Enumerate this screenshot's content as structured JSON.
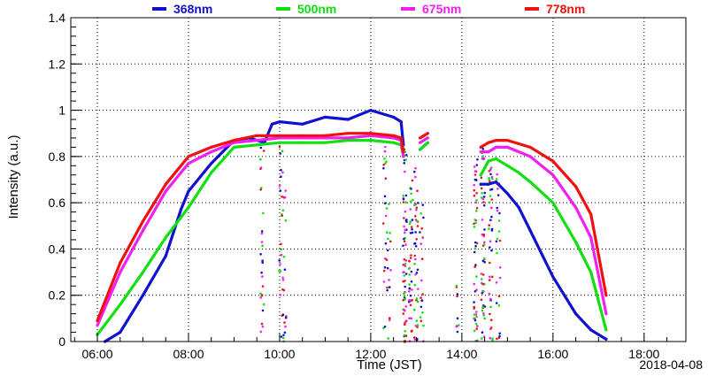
{
  "chart_data": {
    "type": "scatter",
    "xlabel": "Time (JST)",
    "ylabel": "Intensity (a.u.)",
    "date_label": "2018-04-08",
    "xlim": [
      "05:25",
      "18:55"
    ],
    "ylim": [
      0,
      1.4
    ],
    "x_ticks": [
      "06:00",
      "08:00",
      "10:00",
      "12:00",
      "14:00",
      "16:00",
      "18:00"
    ],
    "y_ticks": [
      "0",
      "0.2",
      "0.4",
      "0.6",
      "0.8",
      "1",
      "1.2",
      "1.4"
    ],
    "grid": true,
    "legend_position": "top",
    "series": [
      {
        "name": "368nm",
        "color": "#1010d0",
        "x": [
          "06:10",
          "06:30",
          "07:00",
          "07:30",
          "07:50",
          "08:00",
          "08:30",
          "09:00",
          "09:20",
          "09:40",
          "09:50",
          "10:00",
          "10:30",
          "11:00",
          "11:30",
          "12:00",
          "12:30",
          "12:40",
          "12:43",
          "12:45",
          "13:05",
          "13:15",
          "14:25",
          "14:35",
          "14:45",
          "15:00",
          "15:15",
          "15:30",
          "16:00",
          "16:30",
          "16:50",
          "17:10"
        ],
        "y": [
          0.0,
          0.04,
          0.2,
          0.37,
          0.57,
          0.65,
          0.77,
          0.87,
          0.88,
          0.86,
          0.94,
          0.95,
          0.94,
          0.97,
          0.96,
          1.0,
          0.97,
          0.95,
          0.85,
          0.0,
          0.83,
          0.86,
          0.68,
          0.68,
          0.69,
          0.64,
          0.58,
          0.48,
          0.28,
          0.12,
          0.05,
          0.01
        ]
      },
      {
        "name": "500nm",
        "color": "#10e010",
        "x": [
          "06:00",
          "06:30",
          "07:00",
          "07:30",
          "08:00",
          "08:30",
          "09:00",
          "09:30",
          "10:00",
          "10:30",
          "11:00",
          "11:30",
          "12:00",
          "12:30",
          "12:40",
          "12:43",
          "12:45",
          "13:05",
          "13:15",
          "14:25",
          "14:35",
          "14:45",
          "15:00",
          "15:15",
          "15:30",
          "16:00",
          "16:30",
          "16:50",
          "17:10"
        ],
        "y": [
          0.03,
          0.16,
          0.3,
          0.45,
          0.58,
          0.73,
          0.84,
          0.85,
          0.86,
          0.86,
          0.86,
          0.87,
          0.87,
          0.86,
          0.85,
          0.8,
          0.0,
          0.83,
          0.86,
          0.72,
          0.78,
          0.79,
          0.76,
          0.73,
          0.69,
          0.6,
          0.43,
          0.3,
          0.05
        ]
      },
      {
        "name": "675nm",
        "color": "#f020f0",
        "x": [
          "06:00",
          "06:30",
          "07:00",
          "07:30",
          "08:00",
          "08:30",
          "09:00",
          "09:30",
          "10:00",
          "10:30",
          "11:00",
          "11:30",
          "12:00",
          "12:30",
          "12:40",
          "12:43",
          "12:45",
          "13:05",
          "13:15",
          "14:25",
          "14:35",
          "14:45",
          "15:00",
          "15:30",
          "16:00",
          "16:30",
          "16:50",
          "17:10"
        ],
        "y": [
          0.07,
          0.3,
          0.48,
          0.65,
          0.77,
          0.82,
          0.86,
          0.87,
          0.88,
          0.88,
          0.88,
          0.88,
          0.89,
          0.88,
          0.87,
          0.8,
          0.0,
          0.86,
          0.88,
          0.82,
          0.82,
          0.84,
          0.84,
          0.8,
          0.72,
          0.58,
          0.45,
          0.12
        ]
      },
      {
        "name": "778nm",
        "color": "#f01010",
        "x": [
          "06:00",
          "06:30",
          "07:00",
          "07:30",
          "08:00",
          "08:30",
          "09:00",
          "09:30",
          "10:00",
          "10:30",
          "11:00",
          "11:30",
          "12:00",
          "12:30",
          "12:40",
          "12:43",
          "12:45",
          "13:05",
          "13:15",
          "14:25",
          "14:35",
          "14:45",
          "15:00",
          "15:30",
          "16:00",
          "16:30",
          "16:50",
          "17:10"
        ],
        "y": [
          0.09,
          0.34,
          0.52,
          0.68,
          0.8,
          0.84,
          0.87,
          0.89,
          0.89,
          0.89,
          0.89,
          0.9,
          0.9,
          0.89,
          0.88,
          0.82,
          0.0,
          0.88,
          0.9,
          0.84,
          0.86,
          0.87,
          0.87,
          0.84,
          0.78,
          0.67,
          0.55,
          0.2
        ]
      }
    ]
  }
}
